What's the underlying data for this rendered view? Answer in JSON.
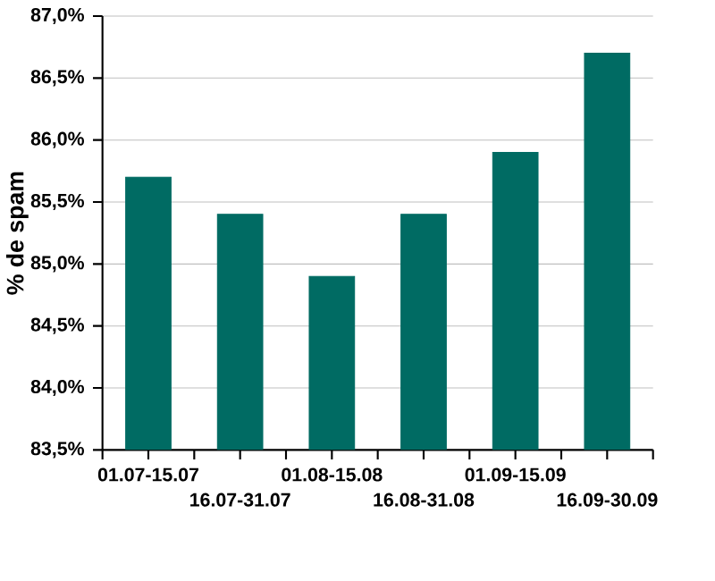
{
  "chart_data": {
    "type": "bar",
    "ylabel": "% de spam",
    "categories": [
      "01.07-15.07",
      "16.07-31.07",
      "01.08-15.08",
      "16.08-31.08",
      "01.09-15.09",
      "16.09-30.09"
    ],
    "values": [
      85.7,
      85.4,
      84.9,
      85.4,
      85.9,
      86.7
    ],
    "color": "#006b63",
    "ylim": [
      83.5,
      87.0
    ],
    "yticks": [
      {
        "value": 83.5,
        "label": "83,5%"
      },
      {
        "value": 84.0,
        "label": "84,0%"
      },
      {
        "value": 84.5,
        "label": "84,5%"
      },
      {
        "value": 85.0,
        "label": "85,0%"
      },
      {
        "value": 85.5,
        "label": "85,5%"
      },
      {
        "value": 86.0,
        "label": "86,0%"
      },
      {
        "value": 86.5,
        "label": "86,5%"
      },
      {
        "value": 87.0,
        "label": "87,0%"
      }
    ],
    "grid": "y"
  }
}
